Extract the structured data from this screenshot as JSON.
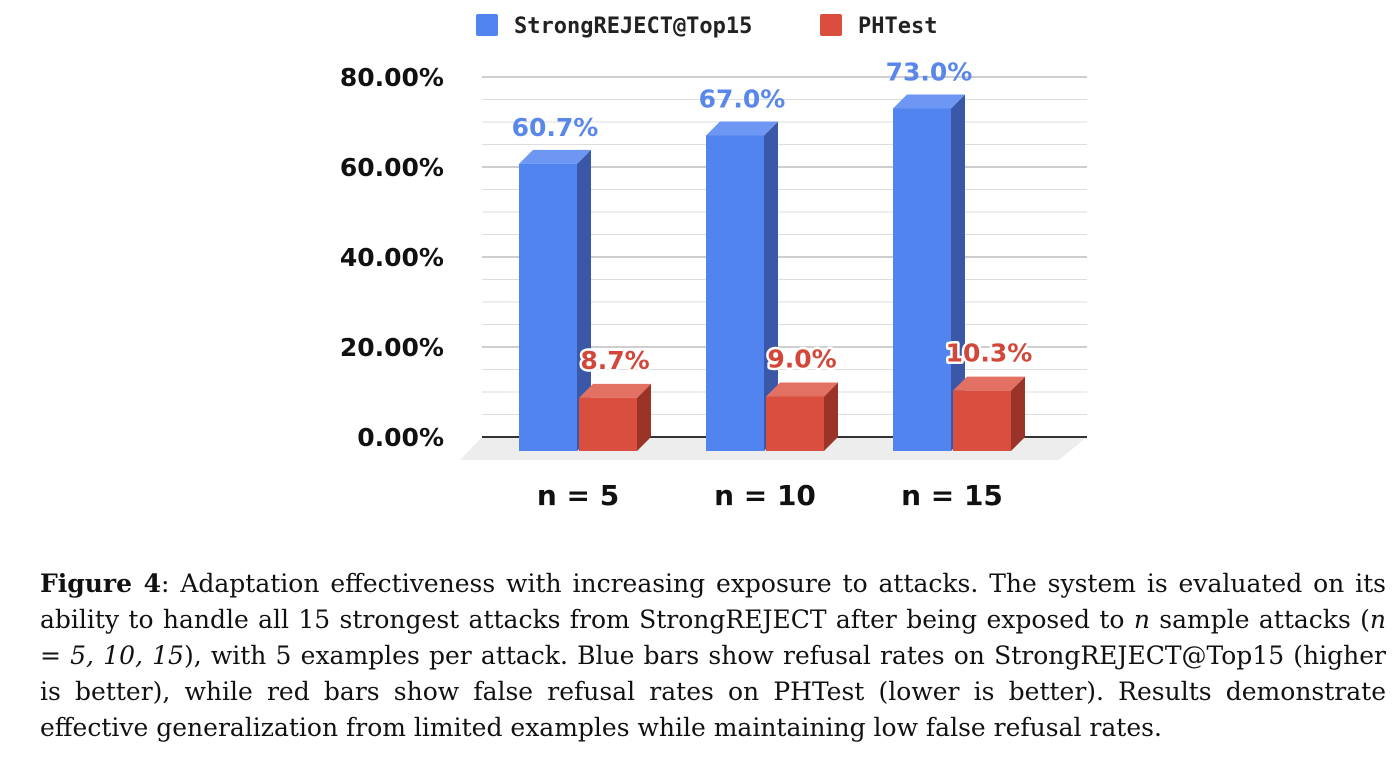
{
  "chart_data": {
    "type": "bar",
    "categories": [
      "n = 5",
      "n = 10",
      "n = 15"
    ],
    "series": [
      {
        "name": "StrongREJECT@Top15",
        "values": [
          60.7,
          67.0,
          73.0
        ],
        "labels": [
          "60.7%",
          "67.0%",
          "73.0%"
        ],
        "color": "#5184ee",
        "side_color": "#3a58a7",
        "top_color": "#6d97f3",
        "label_color": "#5a88ea"
      },
      {
        "name": "PHTest",
        "values": [
          8.7,
          9.0,
          10.3
        ],
        "labels": [
          "8.7%",
          "9.0%",
          "10.3%"
        ],
        "color": "#d94e3f",
        "side_color": "#9a3328",
        "top_color": "#e37163",
        "label_color": "#d2473a"
      }
    ],
    "y_ticks": [
      {
        "value": 0,
        "label": "0.00%"
      },
      {
        "value": 20,
        "label": "20.00%"
      },
      {
        "value": 40,
        "label": "40.00%"
      },
      {
        "value": 60,
        "label": "60.00%"
      },
      {
        "value": 80,
        "label": "80.00%"
      }
    ],
    "ylim": [
      0,
      80
    ],
    "grid": true,
    "legend": "top"
  },
  "caption": {
    "label": "Figure",
    "number": "4",
    "text_1": ": Adaptation effectiveness with increasing exposure to attacks. The system is evaluated on its ability to handle all 15 strongest attacks from StrongREJECT after being exposed to ",
    "var_n": "n",
    "text_2": " sample attacks (",
    "math": "n = 5, 10, 15",
    "text_3": "), with 5 examples per attack. Blue bars show refusal rates on StrongREJECT@Top15 (higher is better), while red bars show false refusal rates on PHTest (lower is better). Results demonstrate effective generalization from limited examples while maintaining low false refusal rates."
  }
}
